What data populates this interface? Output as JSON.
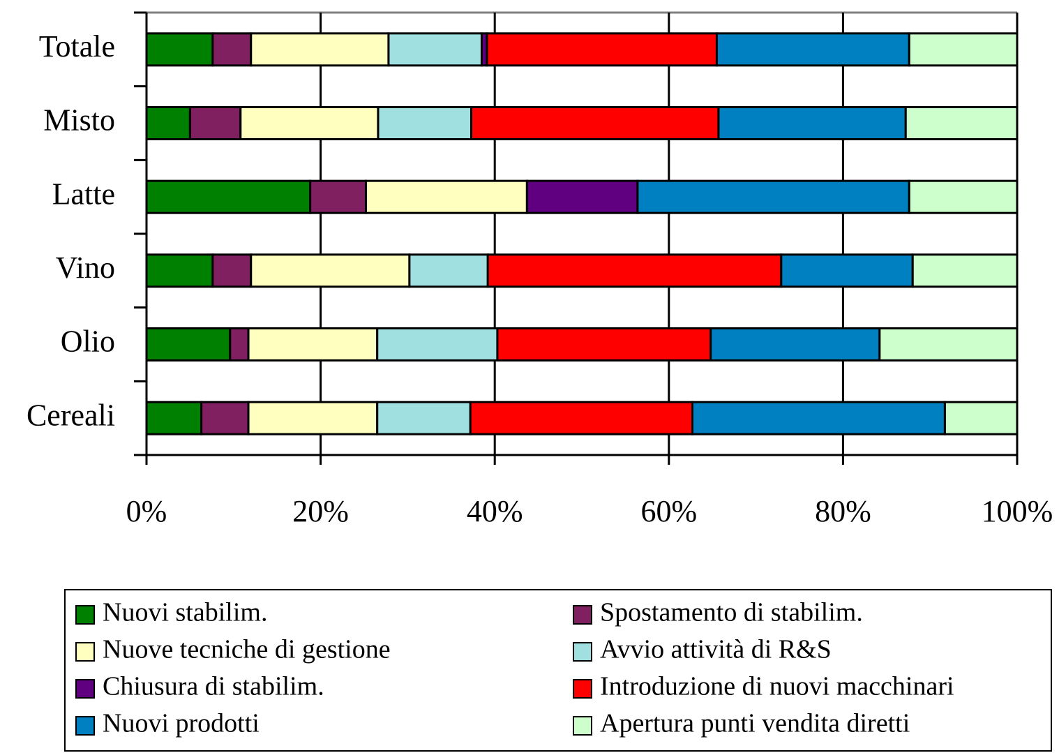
{
  "chart_data": {
    "type": "stacked_barh",
    "categories": [
      "Cereali",
      "Olio",
      "Vino",
      "Latte",
      "Misto",
      "Totale"
    ],
    "series": [
      {
        "name": "Nuovi stabilim.",
        "color": "#008000",
        "values": [
          6.3,
          9.6,
          7.6,
          18.8,
          5.0,
          7.6
        ]
      },
      {
        "name": "Spostamento di stabilim.",
        "color": "#802060",
        "values": [
          5.4,
          2.1,
          4.4,
          6.4,
          5.8,
          4.4
        ]
      },
      {
        "name": "Nuove tecniche di gestione",
        "color": "#ffffc0",
        "values": [
          14.8,
          14.8,
          18.2,
          18.5,
          15.8,
          15.8
        ]
      },
      {
        "name": "Avvio attività di R&S",
        "color": "#a0e0e0",
        "values": [
          10.7,
          13.8,
          9.0,
          0,
          10.7,
          10.7
        ]
      },
      {
        "name": "Chiusura di stabilim.",
        "color": "#600080",
        "values": [
          0,
          0,
          0,
          12.7,
          0,
          0.6
        ]
      },
      {
        "name": "Introduzione di nuovi macchinari",
        "color": "#ff0000",
        "values": [
          25.5,
          24.5,
          33.7,
          0,
          28.4,
          26.4
        ]
      },
      {
        "name": "Nuovi prodotti",
        "color": "#0080c0",
        "values": [
          29.0,
          19.4,
          15.1,
          31.2,
          21.5,
          22.1
        ]
      },
      {
        "name": "Apertura punti vendita diretti",
        "color": "#ccffcc",
        "values": [
          8.3,
          15.8,
          12.0,
          12.4,
          12.8,
          12.4
        ]
      }
    ],
    "xlim": [
      0,
      100
    ],
    "xticks": [
      {
        "value": 0,
        "label": "0%"
      },
      {
        "value": 20,
        "label": "20%"
      },
      {
        "value": 40,
        "label": "40%"
      },
      {
        "value": 60,
        "label": "60%"
      },
      {
        "value": 80,
        "label": "80%"
      },
      {
        "value": 100,
        "label": "100%"
      }
    ],
    "grid": true,
    "legend": "bottom"
  }
}
